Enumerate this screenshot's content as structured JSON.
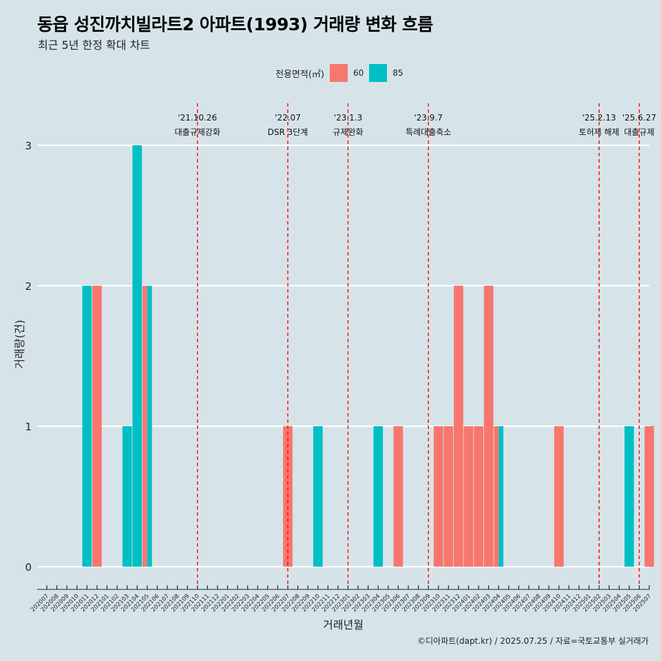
{
  "title": "동읍 성진까치빌라트2 아파트(1993) 거래량 변화 흐름",
  "subtitle": "최근 5년 한정 확대 차트",
  "caption": "©디아파트(dapt.kr) / 2025.07.25 / 자료=국토교통부 실거래가",
  "legend": {
    "title": "전용면적(㎡)",
    "items": [
      {
        "label": "60",
        "color": "#f8766d"
      },
      {
        "label": "85",
        "color": "#00bfc4"
      }
    ]
  },
  "chart_data": {
    "type": "bar",
    "xlabel": "거래년월",
    "ylabel": "거래량(건)",
    "ylim": [
      0,
      3
    ],
    "yticks": [
      0,
      1,
      2,
      3
    ],
    "grid": true,
    "legend_position": "top",
    "categories": [
      "202007",
      "202008",
      "202009",
      "202010",
      "202011",
      "202012",
      "202101",
      "202102",
      "202103",
      "202104",
      "202105",
      "202106",
      "202107",
      "202108",
      "202109",
      "202110",
      "202111",
      "202112",
      "202201",
      "202202",
      "202203",
      "202204",
      "202205",
      "202206",
      "202207",
      "202208",
      "202209",
      "202210",
      "202211",
      "202212",
      "202301",
      "202302",
      "202303",
      "202304",
      "202305",
      "202306",
      "202307",
      "202308",
      "202309",
      "202310",
      "202311",
      "202312",
      "202401",
      "202402",
      "202403",
      "202404",
      "202405",
      "202406",
      "202407",
      "202408",
      "202409",
      "202410",
      "202411",
      "202412",
      "202501",
      "202502",
      "202503",
      "202504",
      "202505",
      "202506",
      "202507"
    ],
    "series": [
      {
        "name": "60",
        "color": "#f8766d",
        "values": [
          0,
          0,
          0,
          0,
          0,
          2,
          0,
          0,
          0,
          0,
          2,
          0,
          0,
          0,
          0,
          0,
          0,
          0,
          0,
          0,
          0,
          0,
          0,
          0,
          1,
          0,
          0,
          0,
          0,
          0,
          0,
          0,
          0,
          0,
          0,
          1,
          0,
          0,
          0,
          1,
          1,
          2,
          1,
          1,
          2,
          1,
          0,
          0,
          0,
          0,
          0,
          1,
          0,
          0,
          0,
          0,
          0,
          0,
          0,
          0,
          1
        ]
      },
      {
        "name": "85",
        "color": "#00bfc4",
        "values": [
          0,
          0,
          0,
          0,
          2,
          0,
          0,
          0,
          1,
          3,
          2,
          0,
          0,
          0,
          0,
          0,
          0,
          0,
          0,
          0,
          0,
          0,
          0,
          0,
          0,
          0,
          0,
          1,
          0,
          0,
          0,
          0,
          0,
          1,
          0,
          0,
          0,
          0,
          0,
          0,
          0,
          0,
          0,
          0,
          0,
          1,
          0,
          0,
          0,
          0,
          0,
          0,
          0,
          0,
          0,
          0,
          0,
          0,
          1,
          0,
          0
        ]
      }
    ],
    "annotations": [
      {
        "category": "202110",
        "date": "'21.10.26",
        "label": "대출규제강화"
      },
      {
        "category": "202207",
        "date": "'22.07",
        "label": "DSR 3단계"
      },
      {
        "category": "202301",
        "date": "'23.1.3",
        "label": "규제완화"
      },
      {
        "category": "202309",
        "date": "'23.9.7",
        "label": "특례대출축소"
      },
      {
        "category": "202502",
        "date": "'25.2.13",
        "label": "토허제 해제"
      },
      {
        "category": "202506",
        "date": "'25.6.27",
        "label": "대출규제"
      }
    ]
  }
}
